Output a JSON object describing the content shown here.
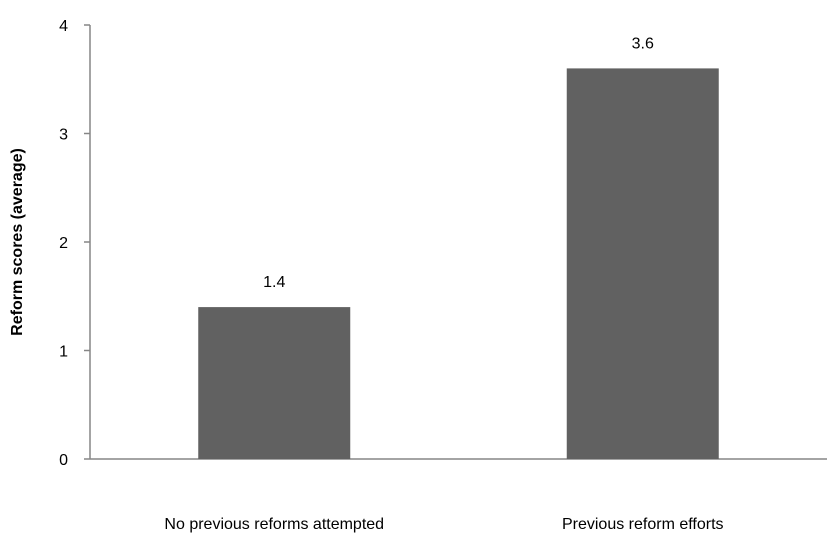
{
  "chart_data": {
    "type": "bar",
    "categories": [
      "No previous reforms attempted",
      "Previous reform efforts"
    ],
    "values": [
      1.4,
      3.6
    ],
    "value_labels": [
      "1.4",
      "3.6"
    ],
    "ylabel": "Reform scores (average)",
    "xlabel": "",
    "ylim": [
      0,
      4
    ],
    "yticks": [
      "0",
      "1",
      "2",
      "3",
      "4"
    ],
    "grid": false,
    "legend": "none",
    "bar_color": "#616161",
    "axis_color": "#868686"
  }
}
